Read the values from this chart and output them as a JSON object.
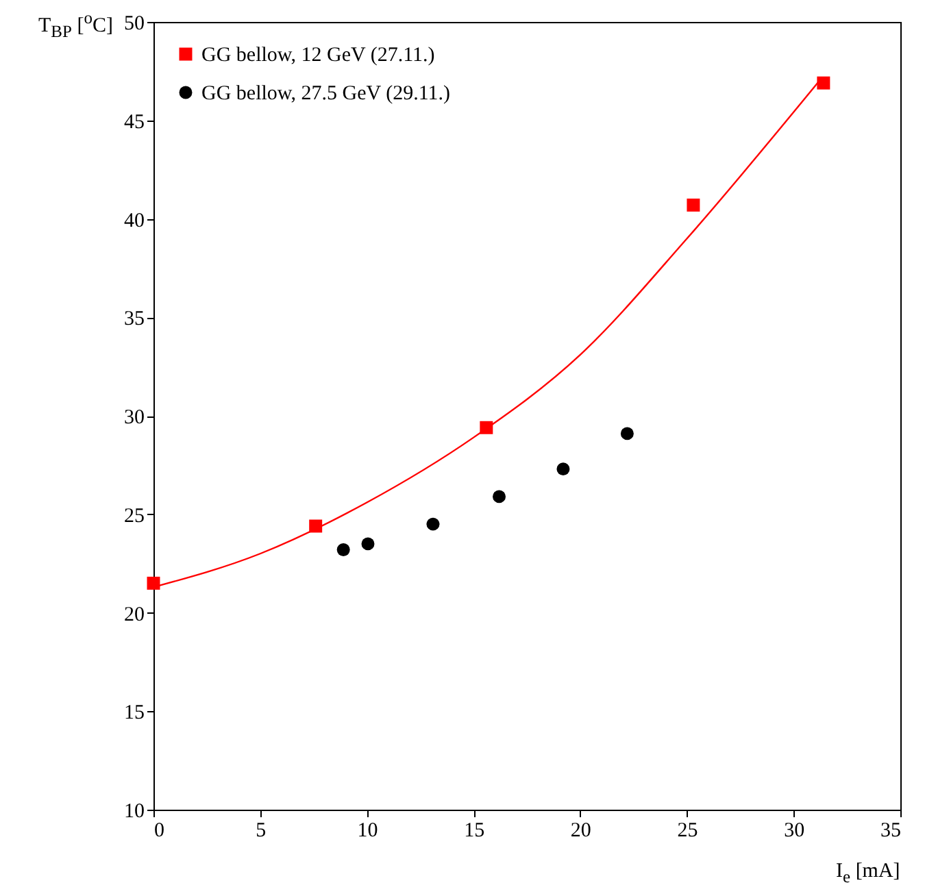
{
  "chart_data": {
    "type": "scatter",
    "xlabel": "I$_{e}$ [mA]",
    "ylabel": "T$_{BP}$ [$^{o}$C]",
    "xlim": [
      0,
      35
    ],
    "ylim": [
      10,
      50
    ],
    "xticks": [
      0,
      5,
      10,
      15,
      20,
      25,
      30,
      35
    ],
    "yticks": [
      10,
      15,
      20,
      25,
      30,
      35,
      40,
      45,
      50
    ],
    "grid": false,
    "legend": "top left",
    "series": [
      {
        "name": "GG bellow, 12 GeV (27.11.)",
        "marker": "square",
        "color": "#ff0000",
        "x": [
          0,
          7.6,
          15.6,
          25.3,
          31.4
        ],
        "values": [
          21.5,
          24.4,
          29.4,
          40.7,
          46.9
        ]
      },
      {
        "name": "GG bellow, 27.5 GeV (29.11.)",
        "marker": "circle",
        "color": "#000000",
        "x": [
          8.9,
          10.05,
          13.1,
          16.2,
          19.2,
          22.2
        ],
        "values": [
          23.2,
          23.5,
          24.5,
          25.9,
          27.3,
          29.1
        ]
      },
      {
        "type": "line",
        "color": "#ff0000",
        "x": [
          0,
          5,
          10,
          15,
          20,
          25,
          31.2
        ],
        "values": [
          21.3,
          23.0,
          25.6,
          28.9,
          33.1,
          39.0,
          47.0
        ]
      }
    ]
  }
}
